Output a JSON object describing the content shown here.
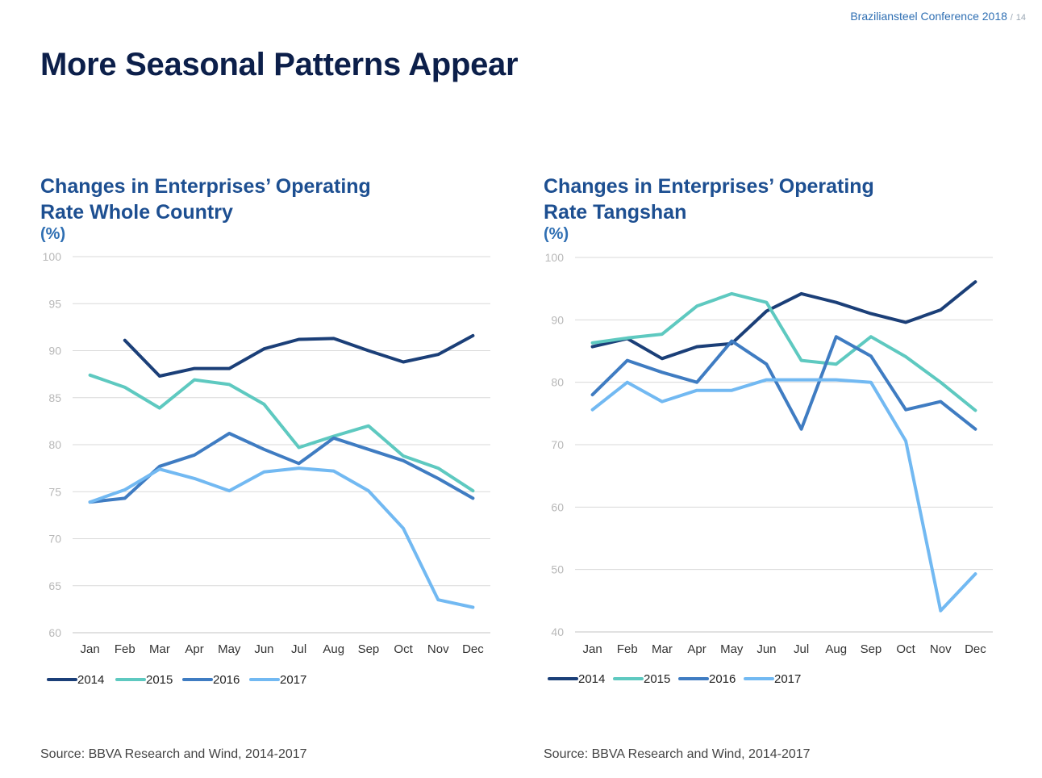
{
  "header": {
    "conference": "Braziliansteel Conference 2018",
    "slash": "/",
    "page": "14"
  },
  "title": "More Seasonal Patterns Appear",
  "chart_data": [
    {
      "type": "line",
      "title_line1": "Changes in Enterprises’ Operating",
      "title_line2": "Rate Whole Country",
      "unit": "(%)",
      "categories": [
        "Jan",
        "Feb",
        "Mar",
        "Apr",
        "May",
        "Jun",
        "Jul",
        "Aug",
        "Sep",
        "Oct",
        "Nov",
        "Dec"
      ],
      "ylim": [
        60,
        100
      ],
      "yticks": [
        100,
        95,
        90,
        85,
        80,
        75,
        70,
        65,
        60
      ],
      "grid": true,
      "legend_position": "bottom",
      "series": [
        {
          "name": "2014",
          "color": "#1b3f78",
          "values": [
            null,
            91.1,
            87.3,
            88.1,
            88.1,
            90.2,
            91.2,
            91.3,
            90.0,
            88.8,
            89.6,
            91.6
          ]
        },
        {
          "name": "2015",
          "color": "#5ec9c0",
          "values": [
            87.4,
            86.1,
            83.9,
            86.9,
            86.4,
            84.3,
            79.7,
            80.9,
            82.0,
            78.8,
            77.5,
            75.1
          ]
        },
        {
          "name": "2016",
          "color": "#3f7cc2",
          "values": [
            73.9,
            74.3,
            77.7,
            78.9,
            81.2,
            79.5,
            78.0,
            80.7,
            79.5,
            78.3,
            76.4,
            74.3
          ]
        },
        {
          "name": "2017",
          "color": "#72b9f2",
          "values": [
            73.9,
            75.2,
            77.4,
            76.4,
            75.1,
            77.1,
            77.5,
            77.2,
            75.1,
            71.1,
            63.5,
            62.7
          ]
        }
      ],
      "source": "Source: BBVA Research and Wind, 2014-2017"
    },
    {
      "type": "line",
      "title_line1": "Changes in Enterprises’ Operating",
      "title_line2": "Rate Tangshan",
      "unit": "(%)",
      "categories": [
        "Jan",
        "Feb",
        "Mar",
        "Apr",
        "May",
        "Jun",
        "Jul",
        "Aug",
        "Sep",
        "Oct",
        "Nov",
        "Dec"
      ],
      "ylim": [
        40,
        100
      ],
      "yticks": [
        100,
        90,
        80,
        70,
        60,
        50,
        40
      ],
      "grid": true,
      "legend_position": "bottom",
      "series": [
        {
          "name": "2014",
          "color": "#1b3f78",
          "values": [
            85.7,
            87.0,
            83.8,
            85.7,
            86.2,
            91.4,
            94.2,
            92.8,
            91.0,
            89.6,
            91.6,
            96.1
          ]
        },
        {
          "name": "2015",
          "color": "#5ec9c0",
          "values": [
            86.3,
            87.1,
            87.7,
            92.2,
            94.2,
            92.8,
            83.5,
            82.9,
            87.3,
            84.1,
            80.0,
            75.5
          ]
        },
        {
          "name": "2016",
          "color": "#3f7cc2",
          "values": [
            78.0,
            83.5,
            81.6,
            80.0,
            86.6,
            82.9,
            72.5,
            87.3,
            84.2,
            75.6,
            76.9,
            72.5
          ]
        },
        {
          "name": "2017",
          "color": "#72b9f2",
          "values": [
            75.6,
            80.0,
            76.9,
            78.7,
            78.7,
            80.4,
            80.4,
            80.4,
            80.0,
            70.6,
            43.4,
            49.3
          ]
        }
      ],
      "source": "Source: BBVA Research and Wind, 2014-2017"
    }
  ]
}
